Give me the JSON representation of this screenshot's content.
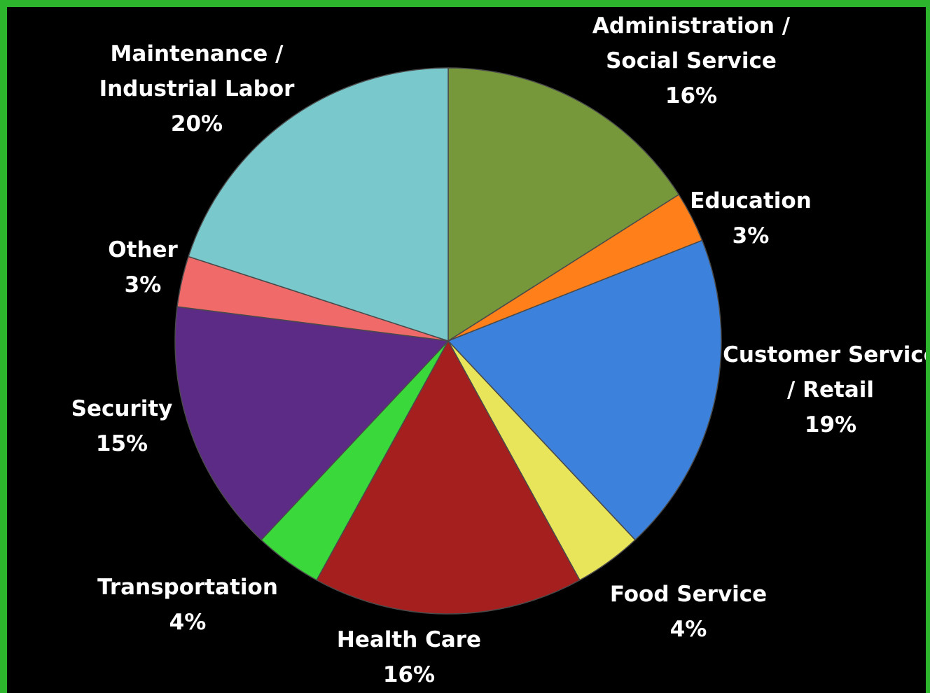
{
  "chart_data": {
    "type": "pie",
    "title": "",
    "start": "12 o'clock, clockwise",
    "slices": [
      {
        "label": [
          "Administration /",
          "Social Service"
        ],
        "value_label": "16%",
        "value": 16,
        "color": "#77983a"
      },
      {
        "label": [
          "Education"
        ],
        "value_label": "3%",
        "value": 3,
        "color": "#ff7f1a"
      },
      {
        "label": [
          "Customer Service",
          "/ Retail"
        ],
        "value_label": "19%",
        "value": 19,
        "color": "#3c82dc"
      },
      {
        "label": [
          "Food Service"
        ],
        "value_label": "4%",
        "value": 4,
        "color": "#e8e55a"
      },
      {
        "label": [
          "Health Care"
        ],
        "value_label": "16%",
        "value": 16,
        "color": "#a61f1f"
      },
      {
        "label": [
          "Transportation"
        ],
        "value_label": "4%",
        "value": 4,
        "color": "#3ad83a"
      },
      {
        "label": [
          "Security"
        ],
        "value_label": "15%",
        "value": 15,
        "color": "#5c2b85"
      },
      {
        "label": [
          "Other"
        ],
        "value_label": "3%",
        "value": 3,
        "color": "#f06a6a"
      },
      {
        "label": [
          "Maintenance /",
          "Industrial Labor"
        ],
        "value_label": "20%",
        "value": 20,
        "color": "#79c8cc"
      }
    ]
  }
}
